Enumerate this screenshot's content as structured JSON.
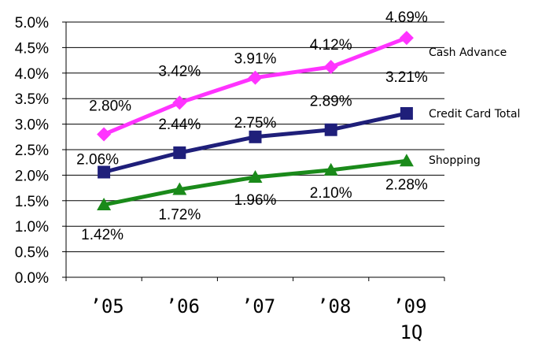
{
  "chart_data": {
    "type": "line",
    "title": "",
    "xlabel": "",
    "ylabel": "",
    "categories": [
      "’05",
      "’06",
      "’07",
      "’08",
      "’09"
    ],
    "category_sublabels": [
      "",
      "",
      "",
      "",
      "1Q"
    ],
    "ylim": [
      0,
      5.0
    ],
    "y_ticks": [
      "0.0%",
      "0.5%",
      "1.0%",
      "1.5%",
      "2.0%",
      "2.5%",
      "3.0%",
      "3.5%",
      "4.0%",
      "4.5%",
      "5.0%"
    ],
    "grid": true,
    "legend": "right, inline at line ends",
    "series": [
      {
        "name": "Cash Advance",
        "values": [
          2.8,
          3.42,
          3.91,
          4.12,
          4.69
        ],
        "labels": [
          "2.80%",
          "3.42%",
          "3.91%",
          "4.12%",
          "4.69%"
        ],
        "color": "#ff33ff",
        "marker": "diamond"
      },
      {
        "name": "Credit Card Total",
        "values": [
          2.06,
          2.44,
          2.75,
          2.89,
          3.21
        ],
        "labels": [
          "2.06%",
          "2.44%",
          "2.75%",
          "2.89%",
          "3.21%"
        ],
        "color": "#1f1f7a",
        "marker": "square"
      },
      {
        "name": "Shopping",
        "values": [
          1.42,
          1.72,
          1.96,
          2.1,
          2.28
        ],
        "labels": [
          "1.42%",
          "1.72%",
          "1.96%",
          "2.10%",
          "2.28%"
        ],
        "color": "#1a8a1a",
        "marker": "triangle"
      }
    ]
  }
}
